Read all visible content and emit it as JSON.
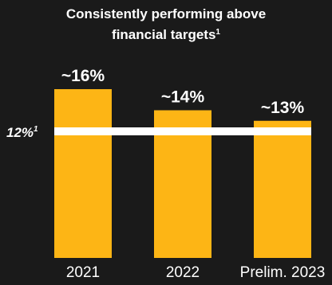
{
  "title": {
    "line1": "Consistently performing above",
    "line2": "financial targets",
    "footnote_mark": "1"
  },
  "colors": {
    "background": "#1a1a1a",
    "bar": "#fdb515",
    "target_line": "#ffffff",
    "text": "#ffffff"
  },
  "chart_data": {
    "type": "bar",
    "title": "Consistently performing above financial targets¹",
    "categories": [
      "2021",
      "2022",
      "Prelim. 2023"
    ],
    "values": [
      16,
      14,
      13
    ],
    "data_labels": [
      "~16%",
      "~14%",
      "~13%"
    ],
    "target": {
      "value": 12,
      "label": "12%",
      "footnote_mark": "1"
    },
    "ylim": [
      0,
      20
    ],
    "grid": false,
    "legend": "none",
    "xlabel": "",
    "ylabel": ""
  }
}
